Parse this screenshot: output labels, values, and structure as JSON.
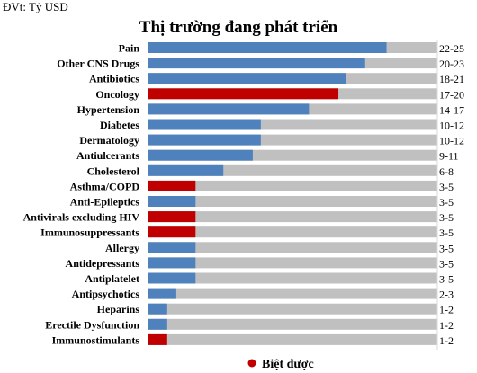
{
  "unit_note": "ĐVt: Tỷ USD",
  "chart_data": {
    "type": "bar",
    "orientation": "horizontal",
    "title": "Thị trường đang phát triển",
    "xlabel": "",
    "ylabel": "",
    "xlim": [
      0,
      27
    ],
    "grid": false,
    "colors": {
      "bar_default": "#4f81bd",
      "bar_highlight": "#c00000",
      "track": "#c0c0c0",
      "highlight_dot": "#c00000"
    },
    "rows": [
      {
        "category": "Pain",
        "value": 22.25,
        "range_label": "22-25",
        "highlight": false
      },
      {
        "category": "Other CNS Drugs",
        "value": 20.25,
        "range_label": "20-23",
        "highlight": false
      },
      {
        "category": "Antibiotics",
        "value": 18.5,
        "range_label": "18-21",
        "highlight": false
      },
      {
        "category": "Oncology",
        "value": 17.75,
        "range_label": "17-20",
        "highlight": true
      },
      {
        "category": "Hypertension",
        "value": 15.0,
        "range_label": "14-17",
        "highlight": false
      },
      {
        "category": "Diabetes",
        "value": 10.5,
        "range_label": "10-12",
        "highlight": false
      },
      {
        "category": "Dermatology",
        "value": 10.5,
        "range_label": "10-12",
        "highlight": false
      },
      {
        "category": "Antiulcerants",
        "value": 9.75,
        "range_label": "9-11",
        "highlight": false
      },
      {
        "category": "Cholesterol",
        "value": 7.0,
        "range_label": "6-8",
        "highlight": false
      },
      {
        "category": "Asthma/COPD",
        "value": 4.4,
        "range_label": "3-5",
        "highlight": true
      },
      {
        "category": "Anti-Epileptics",
        "value": 4.4,
        "range_label": "3-5",
        "highlight": false
      },
      {
        "category": "Antivirals excluding HIV",
        "value": 4.4,
        "range_label": "3-5",
        "highlight": true
      },
      {
        "category": "Immunosuppressants",
        "value": 4.4,
        "range_label": "3-5",
        "highlight": true
      },
      {
        "category": "Allergy",
        "value": 4.4,
        "range_label": "3-5",
        "highlight": false
      },
      {
        "category": "Antidepressants",
        "value": 4.4,
        "range_label": "3-5",
        "highlight": false
      },
      {
        "category": "Antiplatelet",
        "value": 4.4,
        "range_label": "3-5",
        "highlight": false
      },
      {
        "category": "Antipsychotics",
        "value": 2.6,
        "range_label": "2-3",
        "highlight": false
      },
      {
        "category": "Heparins",
        "value": 1.75,
        "range_label": "1-2",
        "highlight": false
      },
      {
        "category": "Erectile Dysfunction",
        "value": 1.75,
        "range_label": "1-2",
        "highlight": false
      },
      {
        "category": "Immunostimulants",
        "value": 1.75,
        "range_label": "1-2",
        "highlight": true
      }
    ],
    "legend": {
      "label": "Biệt dược",
      "placement": "bottom"
    }
  }
}
